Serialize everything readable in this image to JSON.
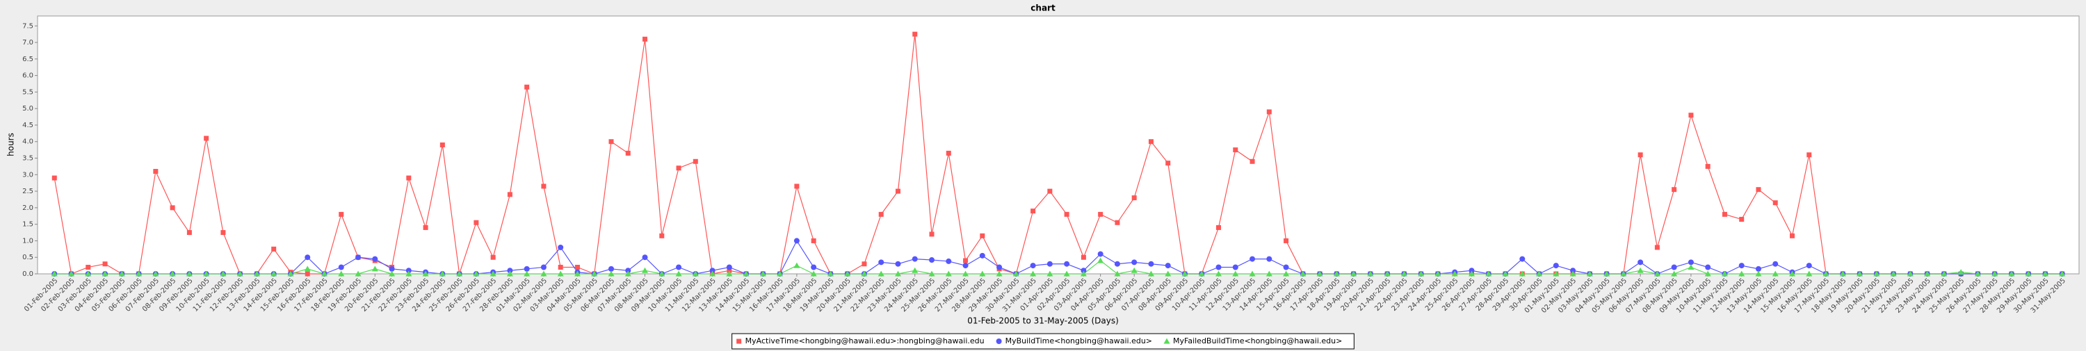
{
  "chart_data": {
    "type": "line",
    "title": "chart",
    "x_label": "01-Feb-2005 to 31-May-2005 (Days)",
    "y_label": "hours",
    "categories": [
      "01-Feb-2005",
      "02-Feb-2005",
      "03-Feb-2005",
      "04-Feb-2005",
      "05-Feb-2005",
      "06-Feb-2005",
      "07-Feb-2005",
      "08-Feb-2005",
      "09-Feb-2005",
      "10-Feb-2005",
      "11-Feb-2005",
      "12-Feb-2005",
      "13-Feb-2005",
      "14-Feb-2005",
      "15-Feb-2005",
      "16-Feb-2005",
      "17-Feb-2005",
      "18-Feb-2005",
      "19-Feb-2005",
      "20-Feb-2005",
      "21-Feb-2005",
      "22-Feb-2005",
      "23-Feb-2005",
      "24-Feb-2005",
      "25-Feb-2005",
      "26-Feb-2005",
      "27-Feb-2005",
      "28-Feb-2005",
      "01-Mar-2005",
      "02-Mar-2005",
      "03-Mar-2005",
      "04-Mar-2005",
      "05-Mar-2005",
      "06-Mar-2005",
      "07-Mar-2005",
      "08-Mar-2005",
      "09-Mar-2005",
      "10-Mar-2005",
      "11-Mar-2005",
      "12-Mar-2005",
      "13-Mar-2005",
      "14-Mar-2005",
      "15-Mar-2005",
      "16-Mar-2005",
      "17-Mar-2005",
      "18-Mar-2005",
      "19-Mar-2005",
      "20-Mar-2005",
      "21-Mar-2005",
      "22-Mar-2005",
      "23-Mar-2005",
      "24-Mar-2005",
      "25-Mar-2005",
      "26-Mar-2005",
      "27-Mar-2005",
      "28-Mar-2005",
      "29-Mar-2005",
      "30-Mar-2005",
      "31-Mar-2005",
      "01-Apr-2005",
      "02-Apr-2005",
      "03-Apr-2005",
      "04-Apr-2005",
      "05-Apr-2005",
      "06-Apr-2005",
      "07-Apr-2005",
      "08-Apr-2005",
      "09-Apr-2005",
      "10-Apr-2005",
      "11-Apr-2005",
      "12-Apr-2005",
      "13-Apr-2005",
      "14-Apr-2005",
      "15-Apr-2005",
      "16-Apr-2005",
      "17-Apr-2005",
      "18-Apr-2005",
      "19-Apr-2005",
      "20-Apr-2005",
      "21-Apr-2005",
      "22-Apr-2005",
      "23-Apr-2005",
      "24-Apr-2005",
      "25-Apr-2005",
      "26-Apr-2005",
      "27-Apr-2005",
      "28-Apr-2005",
      "29-Apr-2005",
      "30-Apr-2005",
      "01-May-2005",
      "02-May-2005",
      "03-May-2005",
      "04-May-2005",
      "05-May-2005",
      "06-May-2005",
      "07-May-2005",
      "08-May-2005",
      "09-May-2005",
      "10-May-2005",
      "11-May-2005",
      "12-May-2005",
      "13-May-2005",
      "14-May-2005",
      "15-May-2005",
      "16-May-2005",
      "17-May-2005",
      "18-May-2005",
      "19-May-2005",
      "20-May-2005",
      "21-May-2005",
      "22-May-2005",
      "23-May-2005",
      "24-May-2005",
      "25-May-2005",
      "26-May-2005",
      "27-May-2005",
      "28-May-2005",
      "29-May-2005",
      "30-May-2005",
      "31-May-2005"
    ],
    "series": [
      {
        "name": "MyActiveTime<hongbing@hawaii.edu>:hongbing@hawaii.edu",
        "color": "#ff5555",
        "marker": "square",
        "values": [
          2.9,
          0,
          0.2,
          0.3,
          0,
          0,
          3.1,
          2.0,
          1.25,
          4.1,
          1.25,
          0,
          0,
          0.75,
          0.05,
          0,
          0,
          1.8,
          0.5,
          0.4,
          0.2,
          2.9,
          1.4,
          3.9,
          0,
          1.55,
          0.5,
          2.4,
          5.65,
          2.65,
          0.2,
          0.2,
          0,
          4.0,
          3.65,
          7.1,
          1.15,
          3.2,
          3.4,
          0,
          0.1,
          0,
          0,
          0,
          2.65,
          1.0,
          0,
          0,
          0.3,
          1.8,
          2.5,
          7.25,
          1.2,
          3.65,
          0.4,
          1.15,
          0.15,
          0,
          1.9,
          2.5,
          1.8,
          0.5,
          1.8,
          1.55,
          2.3,
          4.0,
          3.35,
          0,
          0,
          1.4,
          3.75,
          3.4,
          4.9,
          1.0,
          0,
          0,
          0,
          0,
          0,
          0,
          0,
          0,
          0,
          0,
          0,
          0,
          0,
          0,
          0,
          0,
          0,
          0,
          0,
          0,
          3.6,
          0.8,
          2.55,
          4.8,
          3.25,
          1.8,
          1.65,
          2.55,
          2.15,
          1.15,
          3.6,
          0,
          0,
          0,
          0,
          0,
          0,
          0,
          0,
          0,
          0,
          0,
          0,
          0,
          0,
          0
        ]
      },
      {
        "name": "MyBuildTime<hongbing@hawaii.edu>",
        "color": "#5555ff",
        "marker": "circle",
        "values": [
          0,
          0,
          0,
          0,
          0,
          0,
          0,
          0,
          0,
          0,
          0,
          0,
          0,
          0,
          0,
          0.5,
          0,
          0.2,
          0.5,
          0.45,
          0.15,
          0.1,
          0.05,
          0,
          0,
          0,
          0.05,
          0.1,
          0.15,
          0.2,
          0.8,
          0.05,
          0,
          0.15,
          0.1,
          0.5,
          0,
          0.2,
          0,
          0.1,
          0.2,
          0,
          0,
          0,
          1.0,
          0.2,
          0,
          0,
          0,
          0.35,
          0.3,
          0.45,
          0.42,
          0.38,
          0.25,
          0.55,
          0.2,
          0,
          0.25,
          0.3,
          0.3,
          0.1,
          0.6,
          0.3,
          0.35,
          0.3,
          0.25,
          0,
          0,
          0.2,
          0.2,
          0.45,
          0.45,
          0.2,
          0,
          0,
          0,
          0,
          0,
          0,
          0,
          0,
          0,
          0.05,
          0.1,
          0,
          0,
          0.45,
          0,
          0.25,
          0.1,
          0,
          0,
          0,
          0.35,
          0,
          0.2,
          0.35,
          0.2,
          0,
          0.25,
          0.15,
          0.3,
          0.05,
          0.25,
          0,
          0,
          0,
          0,
          0,
          0,
          0,
          0,
          0,
          0,
          0,
          0,
          0,
          0,
          0
        ]
      },
      {
        "name": "MyFailedBuildTime<hongbing@hawaii.edu>",
        "color": "#55dd55",
        "marker": "triangle",
        "values": [
          0,
          0,
          0,
          0,
          0,
          0,
          0,
          0,
          0,
          0,
          0,
          0,
          0,
          0,
          0,
          0.15,
          0,
          0,
          0,
          0.15,
          0,
          0,
          0,
          0,
          0,
          0,
          0,
          0,
          0,
          0,
          0,
          0,
          0,
          0,
          0,
          0.1,
          0,
          0,
          0,
          0,
          0,
          0,
          0,
          0,
          0.25,
          0,
          0,
          0,
          0,
          0,
          0,
          0.1,
          0,
          0,
          0,
          0,
          0,
          0,
          0,
          0,
          0,
          0,
          0.4,
          0,
          0.1,
          0,
          0,
          0,
          0,
          0,
          0,
          0,
          0,
          0,
          0,
          0,
          0,
          0,
          0,
          0,
          0,
          0,
          0,
          0,
          0,
          0,
          0,
          0,
          0,
          0,
          0,
          0,
          0,
          0,
          0.1,
          0,
          0,
          0.2,
          0,
          0,
          0,
          0,
          0,
          0,
          0,
          0,
          0,
          0,
          0,
          0,
          0,
          0,
          0,
          0.05,
          0,
          0,
          0,
          0,
          0,
          0
        ]
      }
    ],
    "ylim": [
      0,
      7.8
    ],
    "yticks": [
      {
        "value": 0,
        "label": "0.0"
      },
      0.5,
      {
        "value": 1,
        "label": "1.0"
      },
      1.5,
      {
        "value": 2,
        "label": "2.0"
      },
      2.5,
      {
        "value": 3,
        "label": "3.0"
      },
      3.5,
      {
        "value": 4,
        "label": "4.0"
      },
      4.5,
      {
        "value": 5,
        "label": "5.0"
      },
      5.5,
      {
        "value": 6,
        "label": "6.0"
      },
      6.5,
      {
        "value": 7,
        "label": "7.0"
      },
      7.5
    ],
    "grid": false,
    "legend": "bottom"
  }
}
